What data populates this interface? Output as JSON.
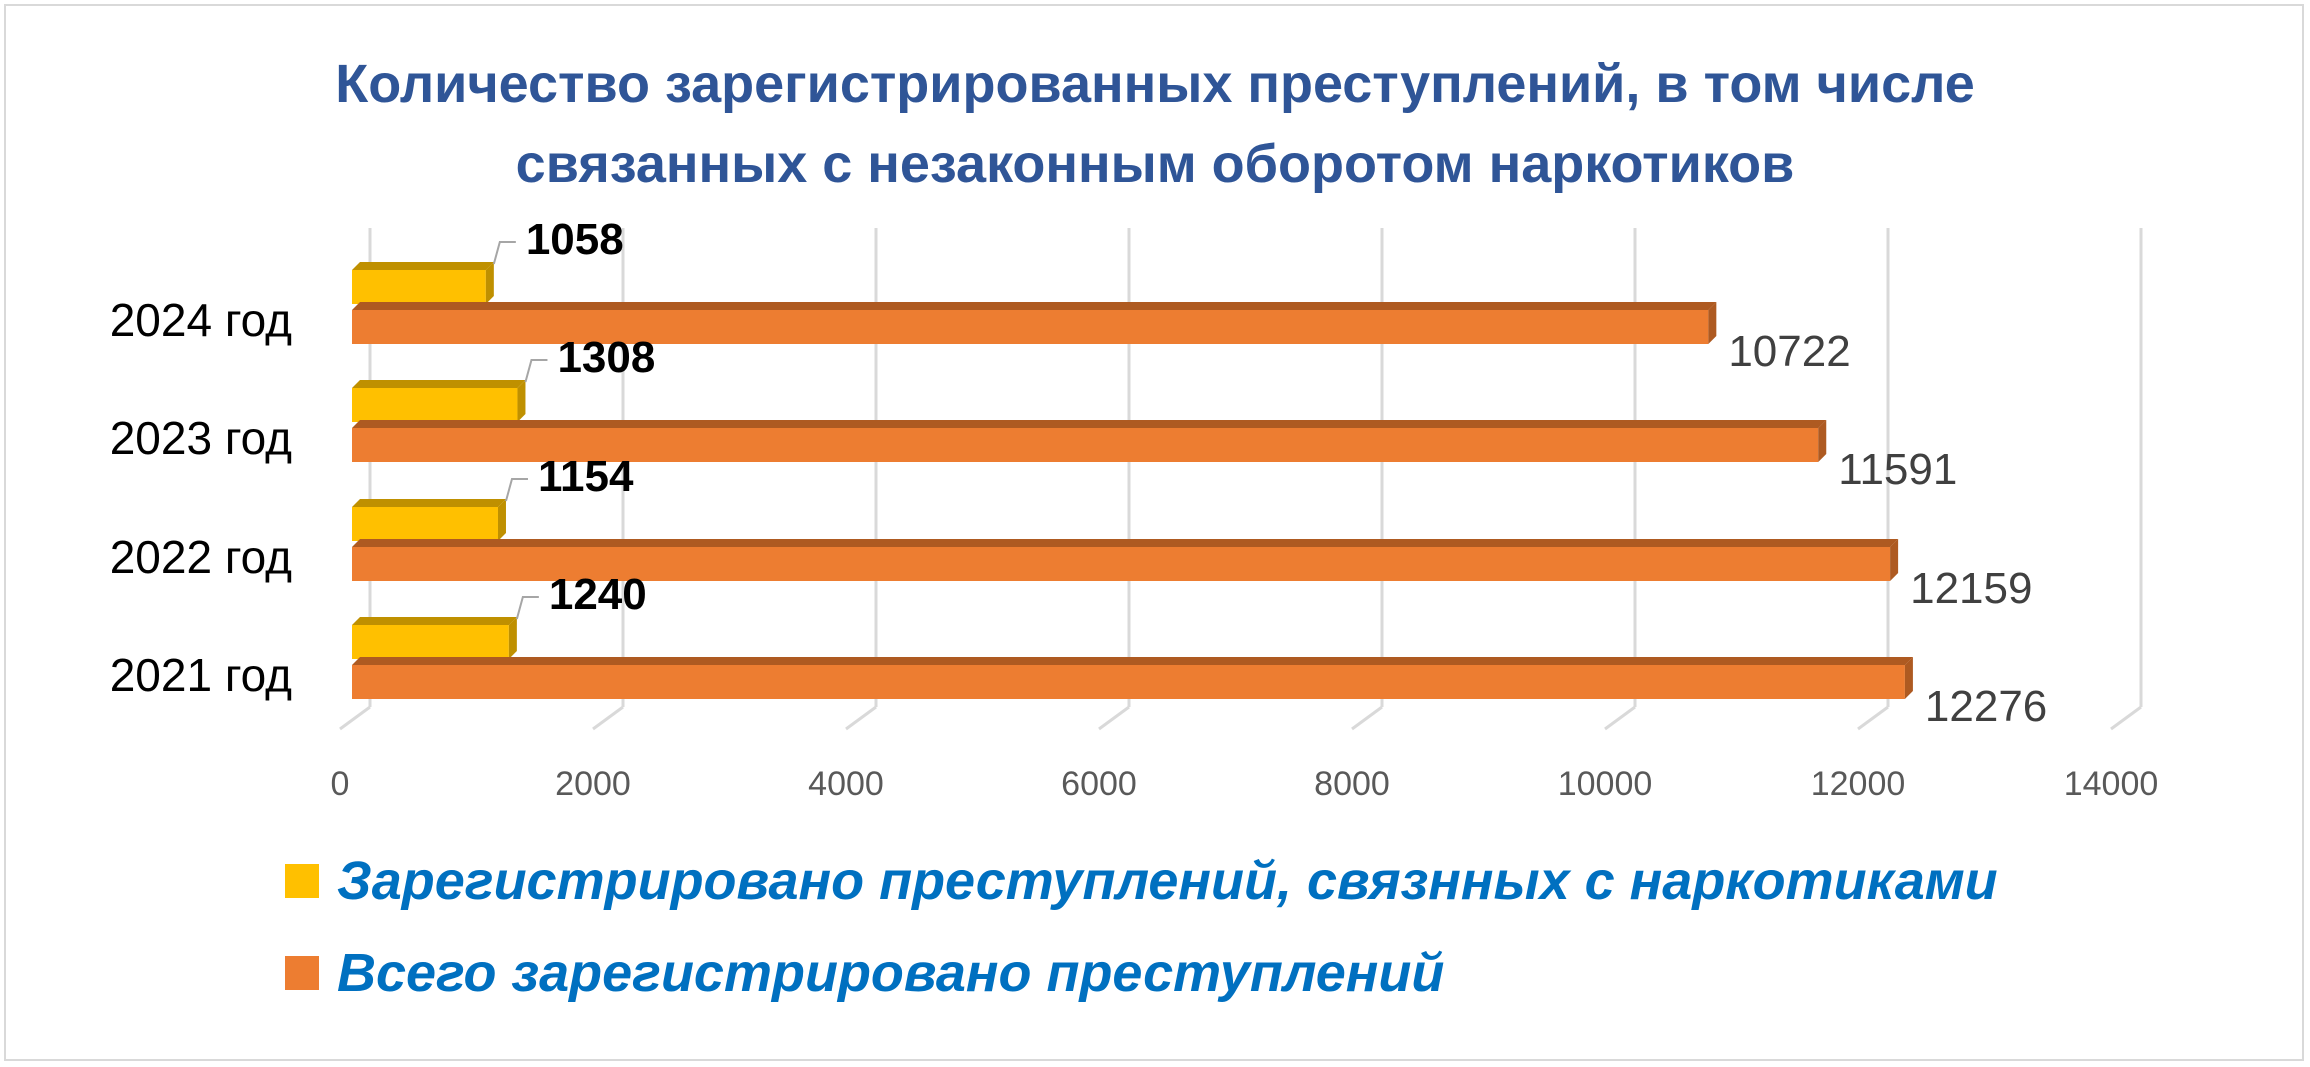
{
  "chart_data": {
    "type": "bar",
    "orientation": "horizontal",
    "title_lines": [
      "Количество зарегистрированных преступлений, в том числе",
      "связанных с незаконным оборотом наркотиков"
    ],
    "categories": [
      "2024 год",
      "2023 год",
      "2022 год",
      "2021 год"
    ],
    "series": [
      {
        "name": "Зарегистрировано преступлений, связнных с наркотиками",
        "values": [
          1058,
          1308,
          1154,
          1240
        ],
        "color": "#ffc000",
        "shade_color": "#bf9000"
      },
      {
        "name": "Всего зарегистрировано преступлений",
        "values": [
          10722,
          11591,
          12159,
          12276
        ],
        "color": "#ed7d31",
        "shade_color": "#ae5a21"
      }
    ],
    "xlim": [
      0,
      14000
    ],
    "x_ticks": [
      "0",
      "2000",
      "4000",
      "6000",
      "8000",
      "10000",
      "12000",
      "14000"
    ],
    "grid": true,
    "legend_position": "bottom",
    "colors": {
      "title": "#2f5597",
      "legend_text": "#0070c0",
      "gridline": "#d9d9d9",
      "axis_text": "#595959",
      "total_label": "#404040",
      "drug_label": "#000000"
    }
  }
}
